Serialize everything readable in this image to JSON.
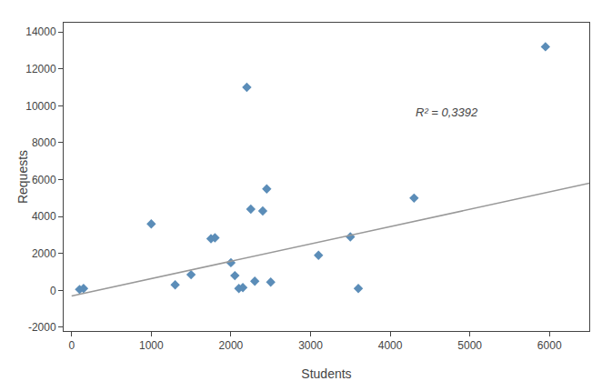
{
  "chart_data": {
    "type": "scatter",
    "xlabel": "Students",
    "ylabel": "Requests",
    "series": [
      {
        "type": "scatter",
        "marker": "diamond",
        "color": "#5B8DB8",
        "x": [
          100,
          150,
          1000,
          1300,
          1500,
          1750,
          1800,
          2000,
          2050,
          2100,
          2150,
          2200,
          2250,
          2300,
          2400,
          2450,
          2500,
          3100,
          3500,
          3600,
          4300,
          5950
        ],
        "values": [
          50,
          100,
          3600,
          300,
          850,
          2800,
          2850,
          1500,
          800,
          100,
          150,
          11000,
          4400,
          500,
          4300,
          5500,
          450,
          1900,
          2900,
          100,
          5000,
          13200
        ]
      },
      {
        "type": "line",
        "color": "#999999",
        "x": [
          0,
          6500
        ],
        "values": [
          -300,
          5800
        ]
      }
    ],
    "annotations": [
      {
        "text": "R² = 0,3392",
        "x": 4300,
        "y": 9200
      }
    ],
    "xlim": [
      -100,
      6500
    ],
    "xticks": [
      0,
      1000,
      2000,
      3000,
      4000,
      5000,
      6000
    ],
    "ylim": [
      -2200,
      14500
    ],
    "yticks": [
      -2000,
      0,
      2000,
      4000,
      6000,
      8000,
      10000,
      12000,
      14000
    ],
    "grid": false
  }
}
